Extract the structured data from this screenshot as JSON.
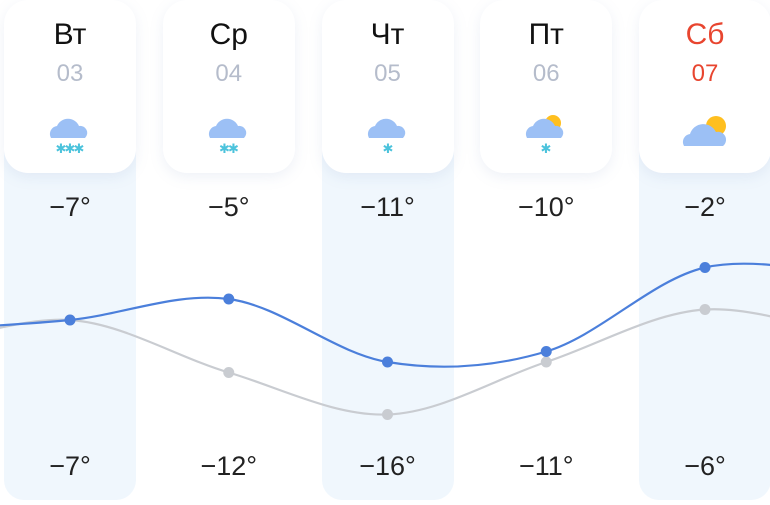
{
  "days": [
    {
      "dow": "Вт",
      "date": "03",
      "icon": "cloud-heavy-snow-icon",
      "snow": 3,
      "sun": false,
      "weekend": false,
      "high": "−7°",
      "low": "−7°"
    },
    {
      "dow": "Ср",
      "date": "04",
      "icon": "cloud-snow-icon",
      "snow": 2,
      "sun": false,
      "weekend": false,
      "high": "−5°",
      "low": "−12°"
    },
    {
      "dow": "Чт",
      "date": "05",
      "icon": "cloud-light-snow-icon",
      "snow": 1,
      "sun": false,
      "weekend": false,
      "high": "−11°",
      "low": "−16°"
    },
    {
      "dow": "Пт",
      "date": "06",
      "icon": "partly-cloudy-snow-icon",
      "snow": 1,
      "sun": true,
      "weekend": false,
      "high": "−10°",
      "low": "−11°"
    },
    {
      "dow": "Сб",
      "date": "07",
      "icon": "partly-cloudy-icon",
      "snow": 0,
      "sun": true,
      "weekend": true,
      "high": "−2°",
      "low": "−6°"
    }
  ],
  "chart_data": {
    "type": "line",
    "categories": [
      "03",
      "04",
      "05",
      "06",
      "07"
    ],
    "series": [
      {
        "values": [
          -7,
          -5,
          -11,
          -10,
          -2
        ],
        "color": "#4b7fdb"
      },
      {
        "values": [
          -7,
          -12,
          -16,
          -11,
          -6
        ],
        "color": "#c9ccd1"
      }
    ]
  },
  "colors": {
    "weekend": "#e8452f",
    "cloud": "#9cc0f5",
    "snow": "#4cc3dc",
    "sun": "#ffbf1f",
    "column_shade": "#f0f7fd"
  }
}
